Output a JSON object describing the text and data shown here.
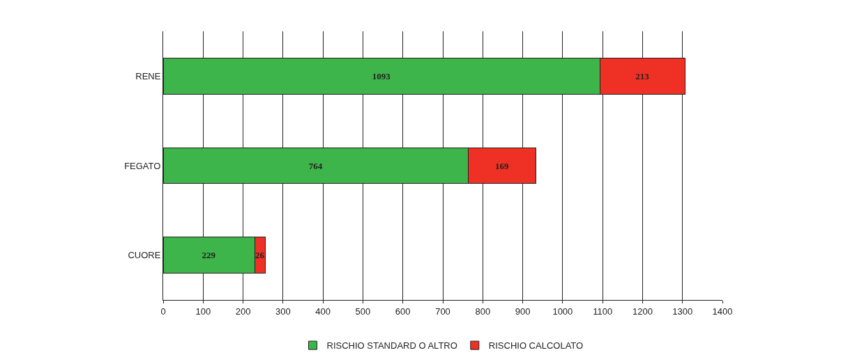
{
  "chart_data": {
    "type": "bar",
    "orientation": "horizontal",
    "stacked": true,
    "categories": [
      "RENE",
      "FEGATO",
      "CUORE"
    ],
    "series": [
      {
        "name": "RISCHIO STANDARD O ALTRO",
        "color": "#3db54a",
        "values": [
          1093,
          764,
          229
        ]
      },
      {
        "name": "RISCHIO CALCOLATO",
        "color": "#ee3124",
        "values": [
          213,
          169,
          26
        ]
      }
    ],
    "xlim": [
      0,
      1400
    ],
    "xticks": [
      0,
      100,
      200,
      300,
      400,
      500,
      600,
      700,
      800,
      900,
      1000,
      1100,
      1200,
      1300,
      1400
    ],
    "grid": "x",
    "legend": "bottom",
    "data_labels": true
  }
}
